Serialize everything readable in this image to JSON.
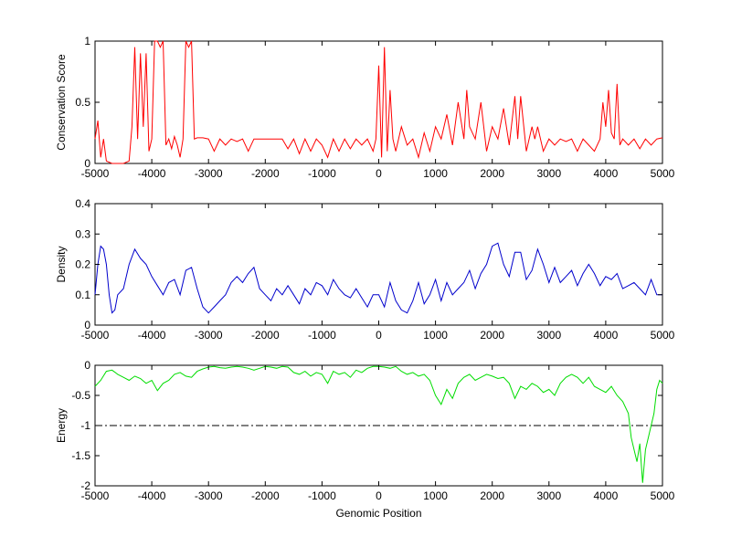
{
  "chart_data": [
    {
      "type": "line",
      "title": "",
      "xlabel": "",
      "ylabel": "Conservation Score",
      "xlim": [
        -5000,
        5000
      ],
      "ylim": [
        0,
        1
      ],
      "xticks": [
        -5000,
        -4000,
        -3000,
        -2000,
        -1000,
        0,
        1000,
        2000,
        3000,
        4000,
        5000
      ],
      "xtick_labels": [
        "-5000",
        "-4000",
        "-3000",
        "-2000",
        "-1000",
        "0",
        "1000",
        "2000",
        "3000",
        "4000",
        "5000"
      ],
      "yticks": [
        0,
        0.5,
        1
      ],
      "ytick_labels": [
        "0",
        "0.5",
        "1"
      ],
      "grid": false,
      "series": [
        {
          "color": "#ff0000",
          "x": [
            -5000,
            -4950,
            -4900,
            -4850,
            -4800,
            -4700,
            -4600,
            -4500,
            -4400,
            -4350,
            -4300,
            -4250,
            -4200,
            -4150,
            -4100,
            -4050,
            -4000,
            -3950,
            -3900,
            -3850,
            -3800,
            -3750,
            -3700,
            -3650,
            -3600,
            -3550,
            -3500,
            -3450,
            -3400,
            -3350,
            -3300,
            -3250,
            -3200,
            -3150,
            -3100,
            -3000,
            -2900,
            -2800,
            -2700,
            -2600,
            -2500,
            -2400,
            -2300,
            -2200,
            -2100,
            -2000,
            -1900,
            -1800,
            -1700,
            -1600,
            -1500,
            -1400,
            -1300,
            -1200,
            -1100,
            -1000,
            -900,
            -800,
            -700,
            -600,
            -500,
            -400,
            -300,
            -200,
            -100,
            -50,
            0,
            50,
            100,
            150,
            200,
            250,
            300,
            400,
            500,
            600,
            700,
            800,
            900,
            1000,
            1100,
            1200,
            1300,
            1400,
            1500,
            1550,
            1600,
            1700,
            1800,
            1900,
            2000,
            2100,
            2200,
            2300,
            2400,
            2450,
            2500,
            2600,
            2700,
            2750,
            2800,
            2900,
            3000,
            3100,
            3200,
            3300,
            3400,
            3500,
            3600,
            3700,
            3800,
            3900,
            3950,
            4000,
            4050,
            4100,
            4150,
            4200,
            4250,
            4300,
            4400,
            4500,
            4600,
            4700,
            4800,
            4900,
            5000
          ],
          "y": [
            0.2,
            0.35,
            0.05,
            0.2,
            0.02,
            0.0,
            0.0,
            0.0,
            0.02,
            0.3,
            0.95,
            0.2,
            0.9,
            0.3,
            0.9,
            0.1,
            0.2,
            1.0,
            1.0,
            0.95,
            1.0,
            0.15,
            0.2,
            0.12,
            0.22,
            0.15,
            0.05,
            0.2,
            1.0,
            0.95,
            1.0,
            0.2,
            0.21,
            0.21,
            0.21,
            0.2,
            0.1,
            0.2,
            0.15,
            0.2,
            0.18,
            0.2,
            0.1,
            0.2,
            0.2,
            0.2,
            0.2,
            0.2,
            0.2,
            0.12,
            0.2,
            0.08,
            0.2,
            0.1,
            0.2,
            0.15,
            0.05,
            0.2,
            0.1,
            0.2,
            0.12,
            0.2,
            0.15,
            0.2,
            0.1,
            0.2,
            0.8,
            0.05,
            0.95,
            0.1,
            0.6,
            0.2,
            0.1,
            0.3,
            0.15,
            0.2,
            0.05,
            0.25,
            0.1,
            0.3,
            0.2,
            0.4,
            0.15,
            0.5,
            0.2,
            0.6,
            0.3,
            0.2,
            0.5,
            0.1,
            0.3,
            0.2,
            0.45,
            0.15,
            0.55,
            0.2,
            0.55,
            0.1,
            0.3,
            0.2,
            0.3,
            0.1,
            0.2,
            0.15,
            0.2,
            0.18,
            0.2,
            0.1,
            0.2,
            0.15,
            0.1,
            0.2,
            0.5,
            0.3,
            0.6,
            0.25,
            0.2,
            0.65,
            0.15,
            0.2,
            0.15,
            0.2,
            0.12,
            0.2,
            0.15,
            0.2,
            0.21
          ]
        }
      ]
    },
    {
      "type": "line",
      "title": "",
      "xlabel": "",
      "ylabel": "Density",
      "xlim": [
        -5000,
        5000
      ],
      "ylim": [
        0,
        0.4
      ],
      "xticks": [
        -5000,
        -4000,
        -3000,
        -2000,
        -1000,
        0,
        1000,
        2000,
        3000,
        4000,
        5000
      ],
      "xtick_labels": [
        "-5000",
        "-4000",
        "-3000",
        "-2000",
        "-1000",
        "0",
        "1000",
        "2000",
        "3000",
        "4000",
        "5000"
      ],
      "yticks": [
        0,
        0.1,
        0.2,
        0.3,
        0.4
      ],
      "ytick_labels": [
        "0",
        "0.1",
        "0.2",
        "0.3",
        "0.4"
      ],
      "grid": false,
      "series": [
        {
          "color": "#0000cc",
          "x": [
            -5000,
            -4950,
            -4900,
            -4850,
            -4800,
            -4750,
            -4700,
            -4650,
            -4600,
            -4500,
            -4400,
            -4300,
            -4200,
            -4100,
            -4000,
            -3900,
            -3800,
            -3700,
            -3600,
            -3500,
            -3400,
            -3300,
            -3200,
            -3100,
            -3000,
            -2900,
            -2800,
            -2700,
            -2600,
            -2500,
            -2400,
            -2300,
            -2200,
            -2100,
            -2000,
            -1900,
            -1800,
            -1700,
            -1600,
            -1500,
            -1400,
            -1300,
            -1200,
            -1100,
            -1000,
            -900,
            -800,
            -700,
            -600,
            -500,
            -400,
            -300,
            -200,
            -100,
            0,
            100,
            200,
            300,
            400,
            500,
            600,
            700,
            800,
            900,
            1000,
            1100,
            1200,
            1300,
            1400,
            1500,
            1600,
            1700,
            1800,
            1900,
            2000,
            2100,
            2200,
            2300,
            2400,
            2500,
            2600,
            2700,
            2800,
            2900,
            3000,
            3100,
            3200,
            3300,
            3400,
            3500,
            3600,
            3700,
            3800,
            3900,
            4000,
            4100,
            4200,
            4300,
            4400,
            4500,
            4600,
            4700,
            4800,
            4900,
            5000
          ],
          "y": [
            0.1,
            0.2,
            0.26,
            0.25,
            0.2,
            0.1,
            0.04,
            0.05,
            0.1,
            0.12,
            0.2,
            0.25,
            0.22,
            0.2,
            0.16,
            0.13,
            0.1,
            0.14,
            0.15,
            0.1,
            0.18,
            0.19,
            0.12,
            0.06,
            0.04,
            0.06,
            0.08,
            0.1,
            0.14,
            0.16,
            0.14,
            0.17,
            0.19,
            0.12,
            0.1,
            0.08,
            0.12,
            0.1,
            0.13,
            0.1,
            0.07,
            0.12,
            0.1,
            0.14,
            0.13,
            0.1,
            0.15,
            0.12,
            0.1,
            0.09,
            0.12,
            0.09,
            0.06,
            0.1,
            0.1,
            0.06,
            0.14,
            0.08,
            0.05,
            0.04,
            0.08,
            0.14,
            0.07,
            0.1,
            0.15,
            0.08,
            0.14,
            0.1,
            0.12,
            0.14,
            0.18,
            0.12,
            0.17,
            0.2,
            0.26,
            0.27,
            0.2,
            0.16,
            0.24,
            0.24,
            0.15,
            0.18,
            0.25,
            0.2,
            0.14,
            0.19,
            0.14,
            0.16,
            0.18,
            0.13,
            0.17,
            0.2,
            0.17,
            0.13,
            0.16,
            0.15,
            0.17,
            0.12,
            0.13,
            0.14,
            0.12,
            0.1,
            0.15,
            0.1,
            0.1
          ]
        }
      ]
    },
    {
      "type": "line",
      "title": "",
      "xlabel": "Genomic Position",
      "ylabel": "Energy",
      "xlim": [
        -5000,
        5000
      ],
      "ylim": [
        -2,
        0
      ],
      "xticks": [
        -5000,
        -4000,
        -3000,
        -2000,
        -1000,
        0,
        1000,
        2000,
        3000,
        4000,
        5000
      ],
      "xtick_labels": [
        "-5000",
        "-4000",
        "-3000",
        "-2000",
        "-1000",
        "0",
        "1000",
        "2000",
        "3000",
        "4000",
        "5000"
      ],
      "yticks": [
        -2,
        -1.5,
        -1,
        -0.5,
        0
      ],
      "ytick_labels": [
        "-2",
        "-1.5",
        "-1",
        "-0.5",
        "0"
      ],
      "reference_line": {
        "y": -1,
        "style": "dash-dot",
        "color": "#000000"
      },
      "grid": false,
      "series": [
        {
          "color": "#00dd00",
          "x": [
            -5000,
            -4900,
            -4800,
            -4700,
            -4600,
            -4500,
            -4400,
            -4300,
            -4200,
            -4100,
            -4000,
            -3900,
            -3800,
            -3700,
            -3600,
            -3500,
            -3400,
            -3300,
            -3200,
            -3100,
            -3000,
            -2900,
            -2800,
            -2700,
            -2600,
            -2500,
            -2400,
            -2300,
            -2200,
            -2100,
            -2000,
            -1900,
            -1800,
            -1700,
            -1600,
            -1500,
            -1400,
            -1300,
            -1200,
            -1100,
            -1000,
            -900,
            -800,
            -700,
            -600,
            -500,
            -400,
            -300,
            -200,
            -100,
            0,
            100,
            200,
            300,
            400,
            500,
            600,
            700,
            800,
            900,
            1000,
            1100,
            1200,
            1300,
            1400,
            1500,
            1600,
            1700,
            1800,
            1900,
            2000,
            2100,
            2200,
            2300,
            2400,
            2500,
            2600,
            2700,
            2800,
            2900,
            3000,
            3100,
            3200,
            3300,
            3400,
            3500,
            3600,
            3700,
            3800,
            3900,
            4000,
            4100,
            4200,
            4300,
            4400,
            4450,
            4500,
            4550,
            4600,
            4650,
            4700,
            4750,
            4800,
            4850,
            4900,
            4950,
            5000
          ],
          "y": [
            -0.35,
            -0.25,
            -0.1,
            -0.08,
            -0.15,
            -0.2,
            -0.25,
            -0.18,
            -0.22,
            -0.3,
            -0.25,
            -0.42,
            -0.3,
            -0.25,
            -0.15,
            -0.12,
            -0.18,
            -0.2,
            -0.1,
            -0.06,
            -0.03,
            -0.02,
            -0.04,
            -0.05,
            -0.03,
            -0.02,
            -0.03,
            -0.05,
            -0.08,
            -0.05,
            -0.02,
            -0.03,
            -0.05,
            -0.02,
            -0.03,
            -0.12,
            -0.15,
            -0.1,
            -0.18,
            -0.12,
            -0.15,
            -0.3,
            -0.1,
            -0.15,
            -0.12,
            -0.2,
            -0.08,
            -0.12,
            -0.05,
            -0.02,
            -0.02,
            -0.03,
            -0.05,
            -0.02,
            -0.1,
            -0.15,
            -0.12,
            -0.18,
            -0.15,
            -0.25,
            -0.5,
            -0.65,
            -0.4,
            -0.55,
            -0.3,
            -0.2,
            -0.15,
            -0.25,
            -0.2,
            -0.15,
            -0.18,
            -0.22,
            -0.2,
            -0.3,
            -0.55,
            -0.35,
            -0.4,
            -0.3,
            -0.35,
            -0.45,
            -0.4,
            -0.5,
            -0.3,
            -0.2,
            -0.15,
            -0.2,
            -0.3,
            -0.2,
            -0.35,
            -0.4,
            -0.45,
            -0.35,
            -0.5,
            -0.6,
            -0.8,
            -1.2,
            -1.4,
            -1.6,
            -1.3,
            -1.95,
            -1.4,
            -1.2,
            -1.0,
            -0.8,
            -0.4,
            -0.25,
            -0.3
          ]
        }
      ]
    }
  ]
}
